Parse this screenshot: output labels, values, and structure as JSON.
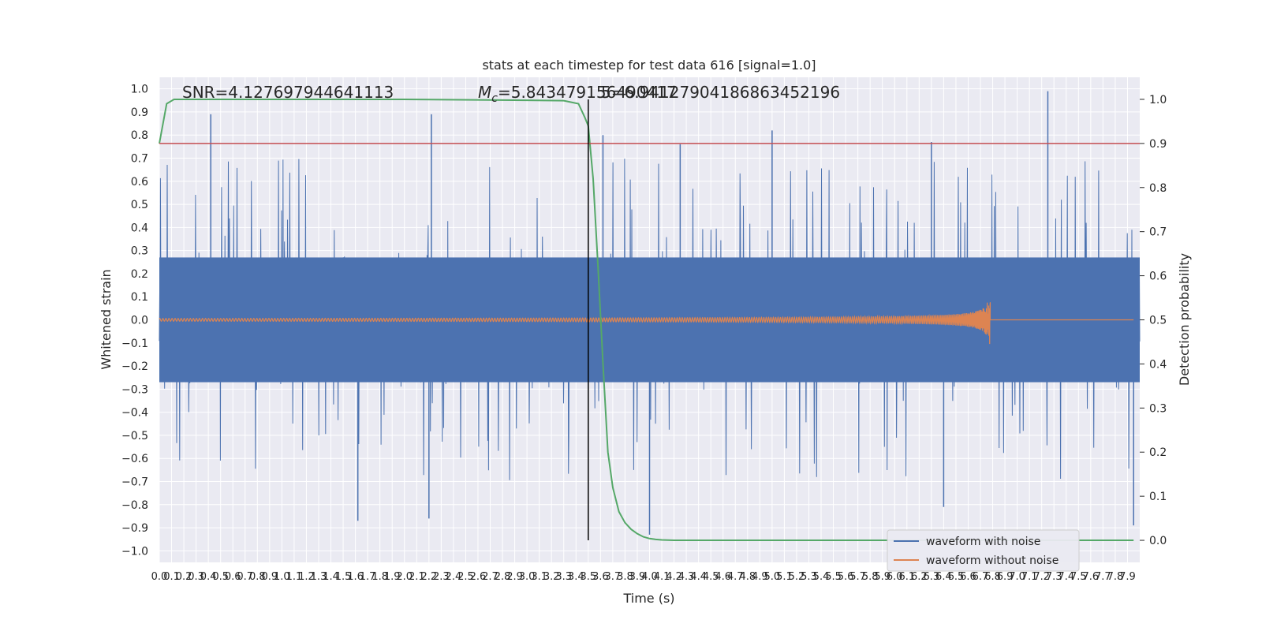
{
  "chart_data": {
    "type": "line",
    "title": "stats at each timestep for test data 616 [signal=1.0]",
    "annotations": {
      "snr": "SNR=4.127697944641113",
      "mc_prefix": "M",
      "mc_sub": "c",
      "mc_value": "=5.843479156490417",
      "extra_overlap": "5=6.94127904186863452196"
    },
    "xlabel": "Time (s)",
    "ylabel_left": "Whitened strain",
    "ylabel_right": "Detection probability",
    "xlim": [
      0.0,
      8.0
    ],
    "ylim_left": [
      -1.05,
      1.05
    ],
    "ylim_right": [
      -0.05,
      1.05
    ],
    "x_ticks": [
      "0.0",
      "0.1",
      "0.2",
      "0.3",
      "0.4",
      "0.5",
      "0.6",
      "0.7",
      "0.8",
      "0.9",
      "1.0",
      "1.1",
      "1.2",
      "1.3",
      "1.4",
      "1.5",
      "1.6",
      "1.7",
      "1.8",
      "1.9",
      "2.0",
      "2.1",
      "2.2",
      "2.3",
      "2.4",
      "2.5",
      "2.6",
      "2.7",
      "2.8",
      "2.9",
      "3.0",
      "3.1",
      "3.2",
      "3.3",
      "3.4",
      "3.5",
      "3.6",
      "3.7",
      "3.8",
      "3.9",
      "4.0",
      "4.1",
      "4.2",
      "4.3",
      "4.4",
      "4.5",
      "4.6",
      "4.7",
      "4.8",
      "4.9",
      "5.0",
      "5.1",
      "5.2",
      "5.3",
      "5.4",
      "5.5",
      "5.6",
      "5.7",
      "5.8",
      "5.9",
      "6.0",
      "6.1",
      "6.2",
      "6.3",
      "6.4",
      "6.5",
      "6.6",
      "6.7",
      "6.8",
      "6.9",
      "7.0",
      "7.1",
      "7.2",
      "7.3",
      "7.4",
      "7.5",
      "7.6",
      "7.7",
      "7.8",
      "7.9"
    ],
    "y_ticks_left": [
      "1.0",
      "0.9",
      "0.8",
      "0.7",
      "0.6",
      "0.5",
      "0.4",
      "0.3",
      "0.2",
      "0.1",
      "0.0",
      "−0.1",
      "−0.2",
      "−0.3",
      "−0.4",
      "−0.5",
      "−0.6",
      "−0.7",
      "−0.8",
      "−0.9",
      "−1.0"
    ],
    "y_ticks_right": [
      "1.0",
      "0.9",
      "0.8",
      "0.7",
      "0.6",
      "0.5",
      "0.4",
      "0.3",
      "0.2",
      "0.1",
      "0.0"
    ],
    "series": [
      {
        "name": "waveform with noise",
        "color": "#4c72b0",
        "band_lower": -0.27,
        "band_upper": 0.27,
        "notable_peaks": [
          {
            "x": 0.42,
            "y": 0.89
          },
          {
            "x": 2.22,
            "y": 0.89
          },
          {
            "x": 3.62,
            "y": 0.8
          },
          {
            "x": 4.25,
            "y": 0.76
          },
          {
            "x": 5.0,
            "y": 0.82
          },
          {
            "x": 6.3,
            "y": 0.77
          },
          {
            "x": 7.25,
            "y": 0.99
          },
          {
            "x": 1.62,
            "y": -0.87
          },
          {
            "x": 2.2,
            "y": -0.86
          },
          {
            "x": 4.0,
            "y": -0.93
          },
          {
            "x": 6.4,
            "y": -0.81
          },
          {
            "x": 7.95,
            "y": -0.89
          }
        ]
      },
      {
        "name": "waveform without noise",
        "color": "#dd8452",
        "chirp_end": 6.78,
        "peak_amplitude": 0.11
      },
      {
        "name": "detection probability",
        "axis": "right",
        "color": "#55a868",
        "x": [
          0.0,
          0.06,
          0.12,
          1.0,
          2.0,
          3.0,
          3.3,
          3.42,
          3.47,
          3.5,
          3.54,
          3.58,
          3.62,
          3.66,
          3.7,
          3.75,
          3.8,
          3.85,
          3.9,
          3.95,
          4.0,
          4.05,
          4.1,
          4.2,
          4.5,
          5.0,
          6.0,
          7.0,
          7.95
        ],
        "y": [
          0.9,
          0.99,
          1.0,
          1.0,
          1.0,
          0.998,
          0.997,
          0.99,
          0.96,
          0.94,
          0.82,
          0.62,
          0.4,
          0.2,
          0.12,
          0.065,
          0.04,
          0.025,
          0.015,
          0.008,
          0.004,
          0.002,
          0.001,
          0.0,
          0.0,
          0.0,
          0.0,
          0.0,
          0.0
        ]
      }
    ],
    "threshold": {
      "value": 0.9,
      "axis": "right",
      "color": "#c44e52"
    },
    "vline": {
      "x": 3.5,
      "color": "#000000"
    },
    "legend": {
      "placement": "bottom-right",
      "entries": [
        "waveform with noise",
        "waveform without noise"
      ]
    },
    "grid": true,
    "background": "#eaeaf2"
  }
}
